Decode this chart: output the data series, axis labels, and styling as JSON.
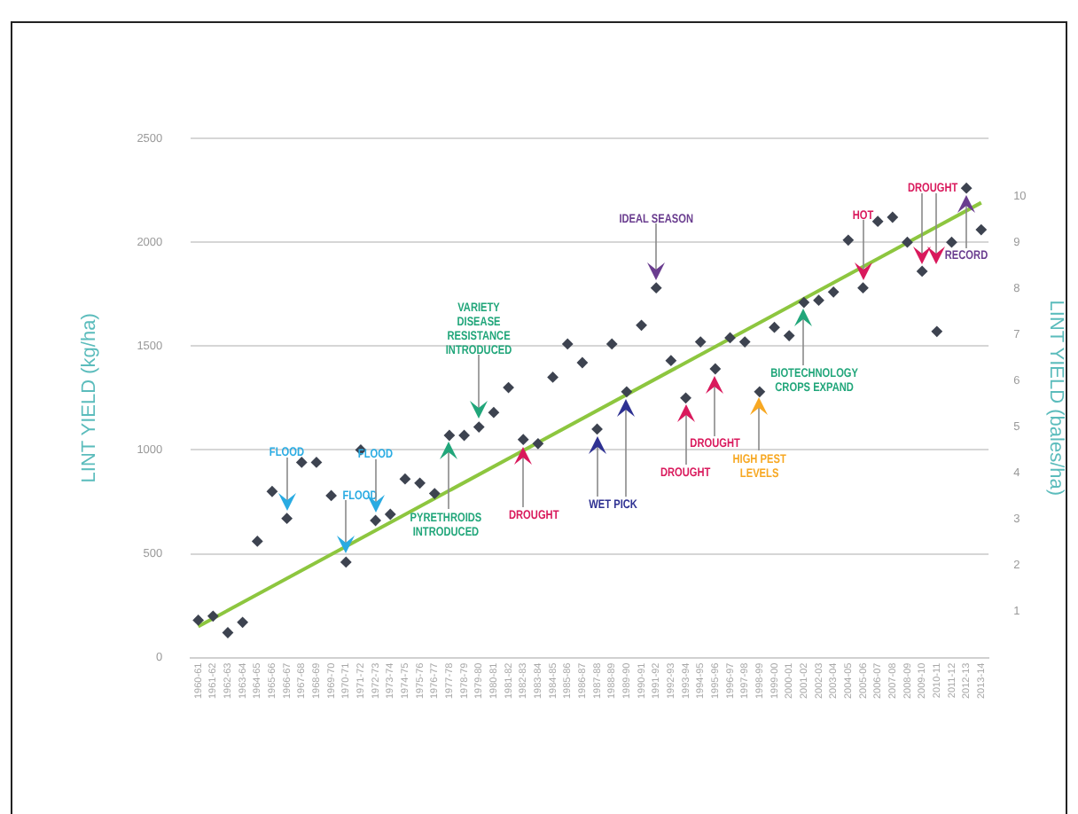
{
  "chart_data": {
    "type": "scatter",
    "ylabel": "LINT YIELD (kg/ha)",
    "y2label": "LINT YIELD (bales/ha)",
    "categories": [
      "1960-61",
      "1961-62",
      "1962-63",
      "1963-64",
      "1964-65",
      "1965-66",
      "1966-67",
      "1967-68",
      "1968-69",
      "1969-70",
      "1970-71",
      "1971-72",
      "1972-73",
      "1973-74",
      "1974-75",
      "1975-76",
      "1976-77",
      "1977-78",
      "1978-79",
      "1979-80",
      "1980-81",
      "1981-82",
      "1982-83",
      "1983-84",
      "1984-85",
      "1985-86",
      "1986-87",
      "1987-88",
      "1988-89",
      "1989-90",
      "1990-91",
      "1991-92",
      "1992-93",
      "1993-94",
      "1994-95",
      "1995-96",
      "1996-97",
      "1997-98",
      "1998-99",
      "1999-00",
      "2000-01",
      "2001-02",
      "2002-03",
      "2003-04",
      "2004-05",
      "2005-06",
      "2006-07",
      "2007-08",
      "2008-09",
      "2009-10",
      "2010-11",
      "2011-12",
      "2012-13",
      "2013-14"
    ],
    "series": [
      {
        "type": "scatter",
        "color": "#3d4350",
        "marker": "diamond",
        "values": [
          180,
          200,
          120,
          170,
          560,
          800,
          670,
          940,
          940,
          780,
          460,
          1000,
          660,
          690,
          860,
          840,
          790,
          1070,
          1070,
          1110,
          1180,
          1300,
          1050,
          1030,
          1350,
          1510,
          1420,
          1100,
          1510,
          1280,
          1600,
          1780,
          1430,
          1250,
          1520,
          1390,
          1540,
          1520,
          1280,
          1590,
          1550,
          1710,
          1720,
          1760,
          2010,
          1780,
          2100,
          2120,
          2000,
          1860,
          1570,
          2000,
          2260,
          2060
        ]
      },
      {
        "type": "line",
        "color": "#8dc63f",
        "marker": "none",
        "x": [
          "1960-61",
          "2013-14"
        ],
        "values": [
          150,
          2190
        ]
      }
    ],
    "ylim": [
      0,
      2500
    ],
    "yticks": [
      0,
      500,
      1000,
      1500,
      2000,
      2500
    ],
    "y2lim": [
      0,
      11.25
    ],
    "y2ticks": [
      1,
      2,
      3,
      4,
      5,
      6,
      7,
      8,
      9,
      10
    ],
    "grid": "y",
    "legend": false,
    "annotations": [
      "FLOOD",
      "FLOOD",
      "FLOOD",
      "VARIETY DISEASE RESISTANCE INTRODUCED",
      {
        "text": "PYRETHROIDS INTRODUCED",
        "x": "1977-78",
        "y": 1070
      },
      {
        "text": "DROUGHT",
        "x": "1982-83",
        "y": 1050
      },
      {
        "text": "WET PICK",
        "x": "1987-88",
        "y": 1100
      },
      {
        "text": "IDEAL SEASON",
        "x": "1991-92",
        "y": 1780
      },
      "DROUGHT",
      "DROUGHT",
      "HIGH PEST LEVELS",
      "BIOTECHNOLOGY CROPS EXPAND",
      {
        "text": "HOT",
        "x": "2005-06",
        "y": 1780
      },
      {
        "text": "DROUGHT",
        "x": "2009-10",
        "y": 1860
      },
      "RECORD"
    ]
  }
}
